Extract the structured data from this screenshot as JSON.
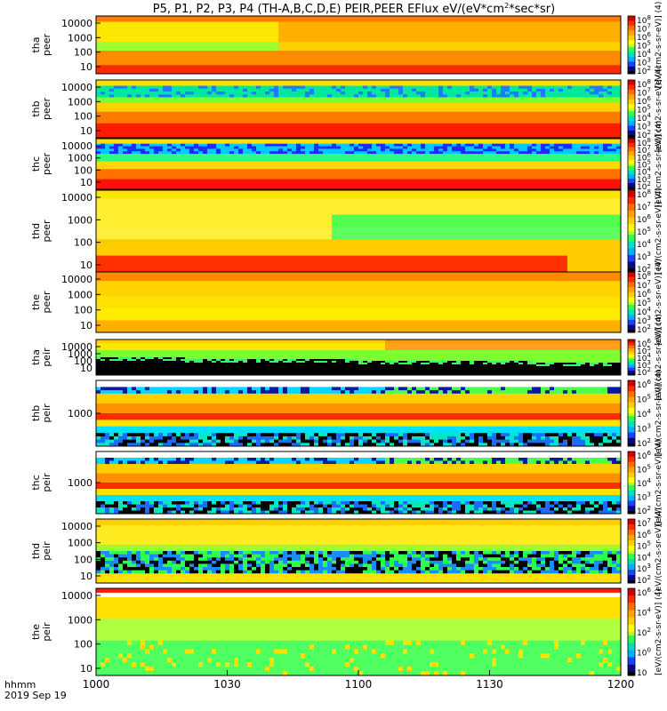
{
  "title": {
    "prefix": "P5, P1, P2, P3, P4 (TH-A,B,C,D,E) PEIR,PEER EFlux eV/(eV*cm",
    "sup": "2",
    "suffix": "*sec*sr)"
  },
  "colors": {
    "spectrum": [
      "#000000",
      "#1a1aff",
      "#00d8ff",
      "#2cff3c",
      "#ffff00",
      "#ffa500",
      "#ff3c00",
      "#d00000"
    ]
  },
  "chart_data": {
    "type": "heatmap",
    "x": {
      "tick_labels": [
        "1000",
        "1030",
        "1100",
        "1130",
        "1200"
      ],
      "label_line1": "hhmm",
      "label_line2": "2019 Sep 19"
    },
    "panels": [
      {
        "id": "tha-peer",
        "ylabel": [
          "tha",
          "peer"
        ],
        "yticks": [
          "10000",
          "1000",
          "100",
          "10"
        ],
        "cbar_ticks": [
          "10",
          "10",
          "10",
          "10",
          "10",
          "10",
          "10"
        ],
        "cbar_exps": [
          "8",
          "7",
          "6",
          "5",
          "4",
          "3",
          "2"
        ],
        "cbar_label": "[eV/(cm2-s-sr-eV)] (4)",
        "pattern": "hot_top",
        "colorbar": "red_to_blue"
      },
      {
        "id": "thb-peer",
        "ylabel": [
          "thb",
          "peer"
        ],
        "yticks": [
          "10000",
          "1000",
          "100",
          "10"
        ],
        "cbar_ticks": [
          "10",
          "10",
          "10",
          "10",
          "10",
          "10",
          "10"
        ],
        "cbar_exps": [
          "8",
          "7",
          "6",
          "5",
          "4",
          "3",
          "2"
        ],
        "cbar_label": "[eV/(cm2-s-sr-eV)] (4)",
        "pattern": "green_top_red",
        "colorbar": "red_to_blue"
      },
      {
        "id": "thc-peer",
        "ylabel": [
          "thc",
          "peer"
        ],
        "yticks": [
          "10000",
          "1000",
          "100",
          "10"
        ],
        "cbar_ticks": [
          "10",
          "10",
          "10",
          "10",
          "10",
          "10",
          "10"
        ],
        "cbar_exps": [
          "8",
          "7",
          "6",
          "5",
          "4",
          "3",
          "2"
        ],
        "cbar_label": "[eV/(cm2-s-sr-eV)] (4)",
        "pattern": "blue_top_red",
        "colorbar": "red_to_blue"
      },
      {
        "id": "thd-peer",
        "ylabel": [
          "thd",
          "peer"
        ],
        "yticks": [
          "10000",
          "1000",
          "100",
          "10"
        ],
        "cbar_ticks": [
          "10",
          "10",
          "10",
          "10",
          "10",
          "10",
          "10"
        ],
        "cbar_exps": [
          "8",
          "7",
          "6",
          "5",
          "4",
          "3",
          "2"
        ],
        "cbar_label": "[eV/(cm2-s-sr-eV)] (4)",
        "pattern": "yellow_mixed",
        "colorbar": "red_to_blue"
      },
      {
        "id": "the-peer",
        "ylabel": [
          "the",
          "peer"
        ],
        "yticks": [
          "10000",
          "1000",
          "100",
          "10"
        ],
        "cbar_ticks": [
          "10",
          "10",
          "10",
          "10",
          "10",
          "10",
          "10"
        ],
        "cbar_exps": [
          "8",
          "7",
          "6",
          "5",
          "4",
          "3",
          "2"
        ],
        "cbar_label": "[eV/(cm2-s-sr-eV)] (4)",
        "pattern": "yellow_red",
        "colorbar": "red_to_blue"
      },
      {
        "id": "tha-peir",
        "ylabel": [
          "tha",
          "peir"
        ],
        "yticks": [
          "10000",
          "1000",
          "100",
          "10"
        ],
        "cbar_ticks": [
          "10",
          "10",
          "10",
          "10",
          "10"
        ],
        "cbar_exps": [
          "6",
          "5",
          "4",
          "3",
          "2"
        ],
        "cbar_label": "[eV/(cm2-s-sr-eV)] (4)",
        "pattern": "ion_black",
        "colorbar": "red_to_blue"
      },
      {
        "id": "thb-peir",
        "ylabel": [
          "thb",
          "peir"
        ],
        "yticks": [
          "1000"
        ],
        "cbar_ticks": [
          "10",
          "10",
          "10",
          "10",
          "10"
        ],
        "cbar_exps": [
          "6",
          "5",
          "4",
          "3",
          "2"
        ],
        "cbar_label": "[eV/(cm2-s-sr-eV)] (4)",
        "pattern": "ion_band",
        "colorbar": "red_to_blue"
      },
      {
        "id": "thc-peir",
        "ylabel": [
          "thc",
          "peir"
        ],
        "yticks": [
          "1000"
        ],
        "cbar_ticks": [
          "10",
          "10",
          "10",
          "10",
          "10"
        ],
        "cbar_exps": [
          "6",
          "5",
          "4",
          "3",
          "2"
        ],
        "cbar_label": "[eV/(cm2-s-sr-eV)] (4)",
        "pattern": "ion_band",
        "colorbar": "red_to_blue"
      },
      {
        "id": "thd-peir",
        "ylabel": [
          "thd",
          "peir"
        ],
        "yticks": [
          "10000",
          "1000",
          "100",
          "10"
        ],
        "cbar_ticks": [
          "10",
          "10",
          "10",
          "10",
          "10",
          "10"
        ],
        "cbar_exps": [
          "7",
          "6",
          "5",
          "4",
          "3",
          "2"
        ],
        "cbar_label": "[eV/(cm2-s-sr-eV)] (4)",
        "pattern": "ion_noisy",
        "colorbar": "red_to_blue"
      },
      {
        "id": "the-peir",
        "ylabel": [
          "the",
          "peir"
        ],
        "yticks": [
          "10000",
          "1000",
          "100",
          "10"
        ],
        "cbar_ticks": [
          "10",
          "10",
          "10",
          "10",
          "10"
        ],
        "cbar_exps": [
          "6",
          "4",
          "2",
          "0",
          ""
        ],
        "cbar_label": "[eV/(cm2-s-sr-eV)] (4)",
        "pattern": "ion_green",
        "colorbar": "red_to_blue"
      }
    ]
  }
}
